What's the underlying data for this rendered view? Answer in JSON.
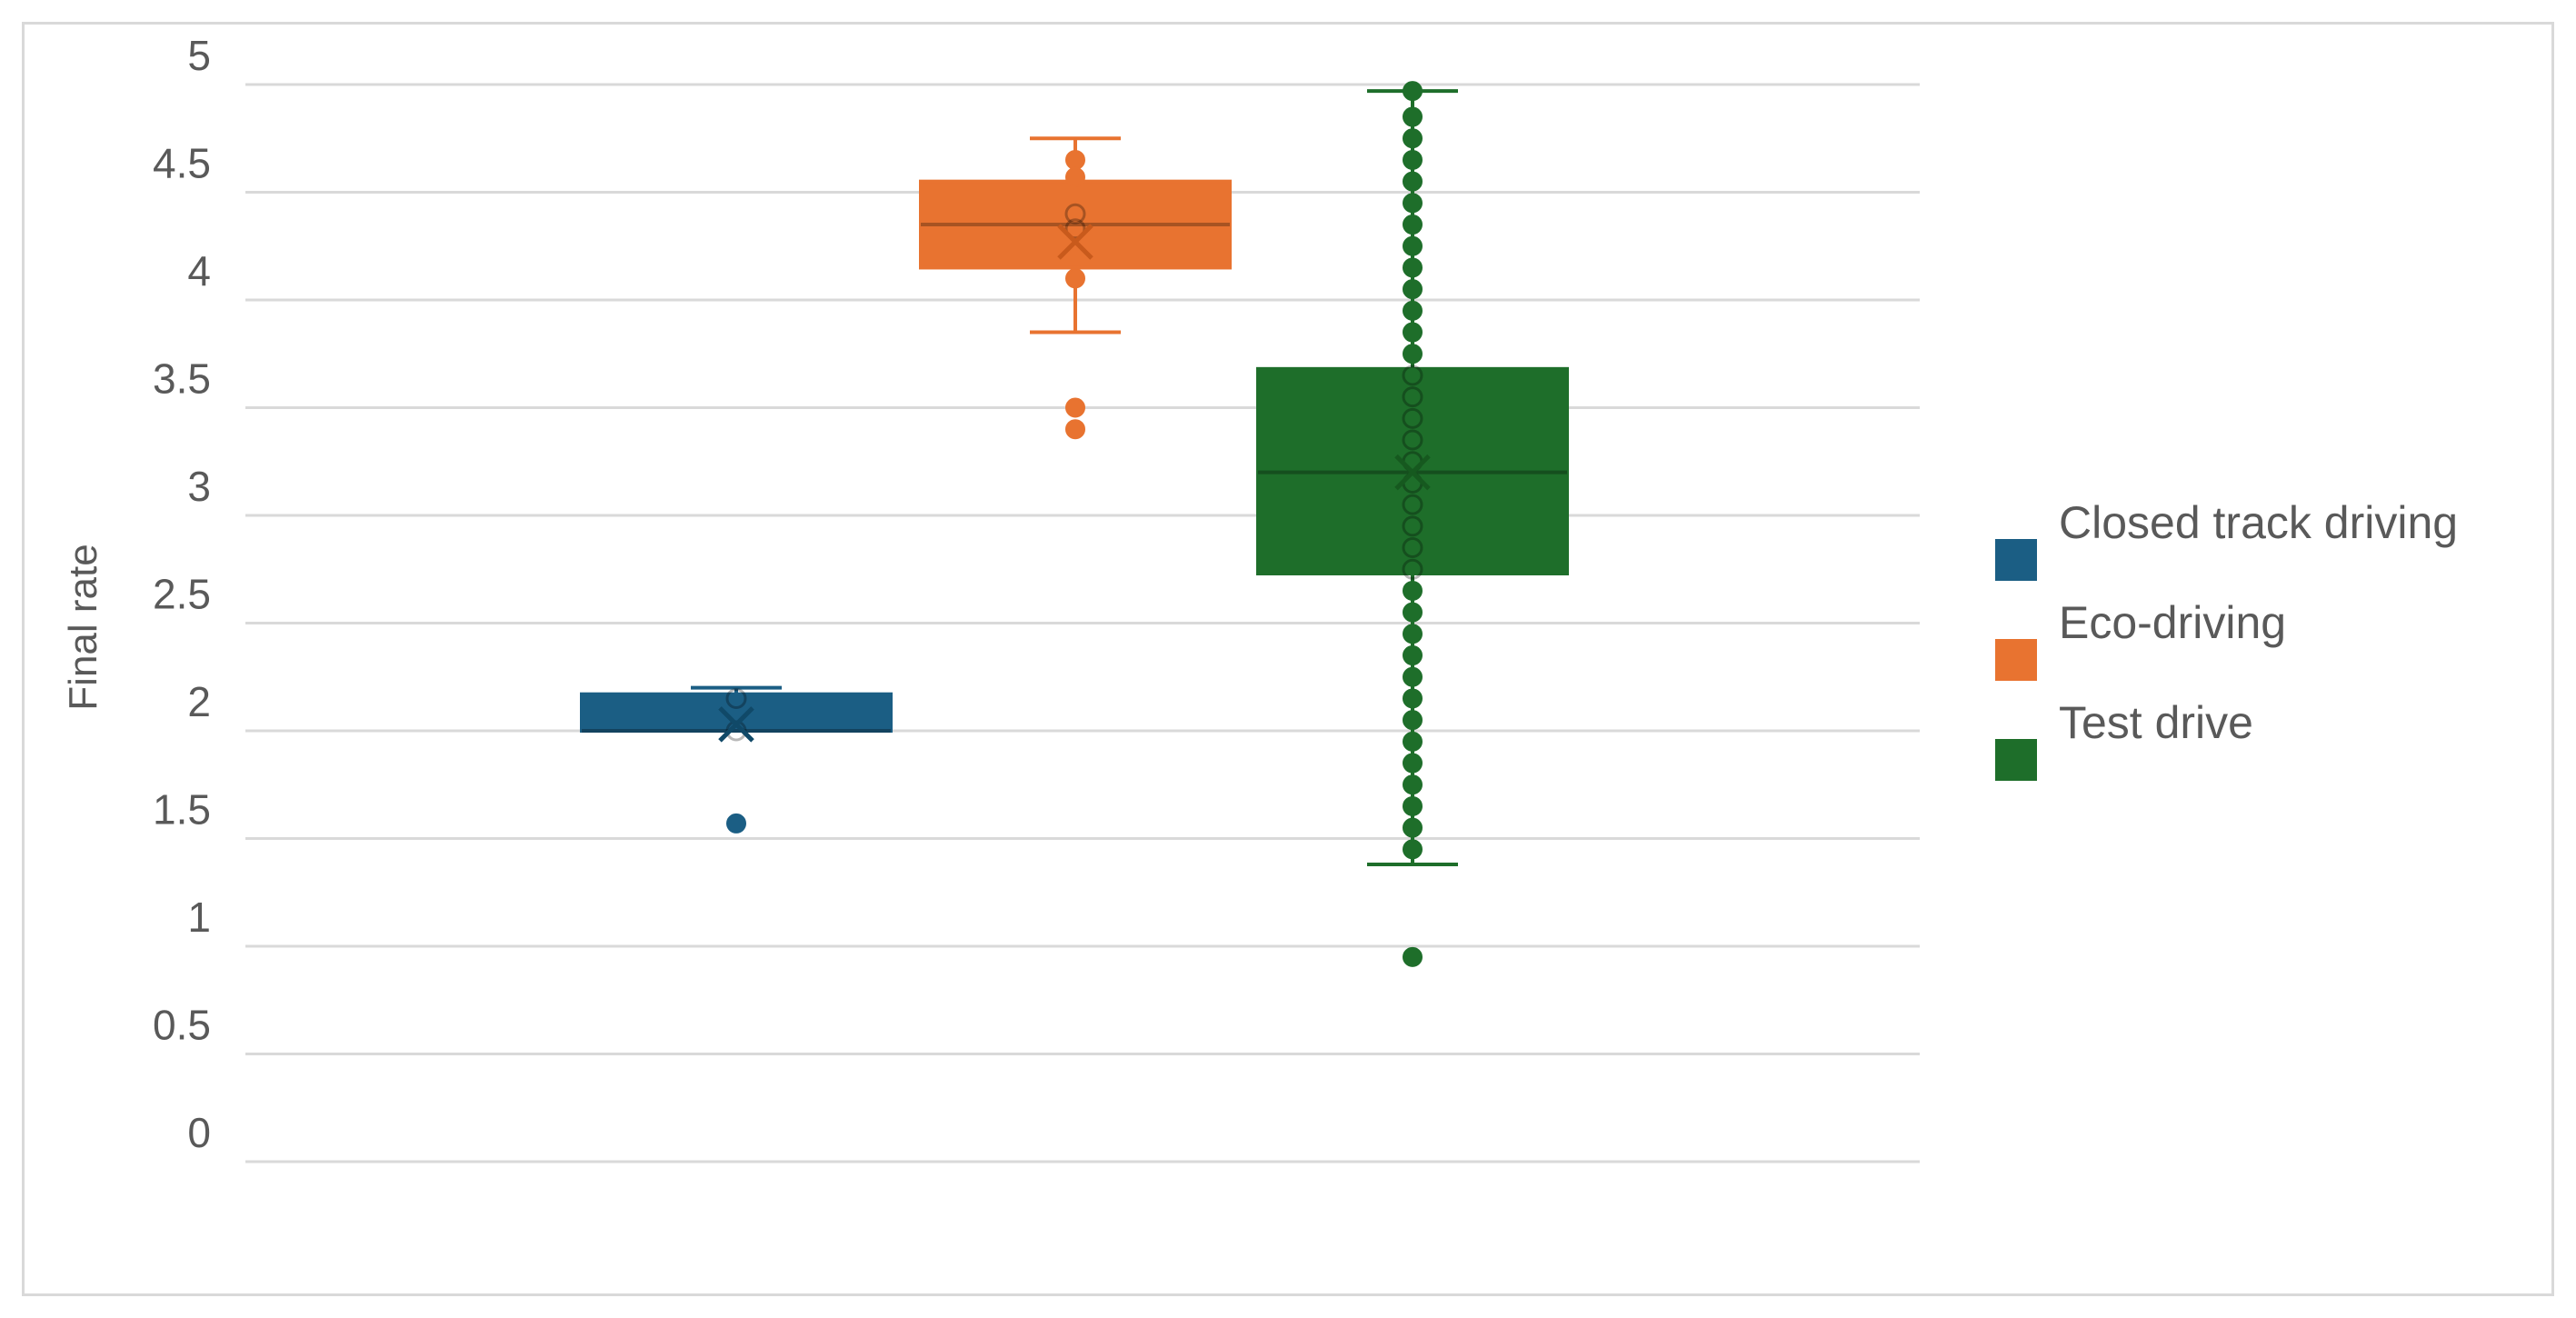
{
  "chart_data": {
    "type": "box",
    "title": "",
    "xlabel": "",
    "ylabel": "Final rate",
    "ylim": [
      0,
      5
    ],
    "y_ticks": [
      0,
      0.5,
      1,
      1.5,
      2,
      2.5,
      3,
      3.5,
      4,
      4.5,
      5
    ],
    "y_tick_labels": [
      "0",
      "0.5",
      "1",
      "1.5",
      "2",
      "2.5",
      "3",
      "3.5",
      "4",
      "4.5",
      "5"
    ],
    "grid": true,
    "legend_position": "right",
    "series": [
      {
        "name": "Closed track driving",
        "color": "#1b5e84",
        "whisker_low": 2.0,
        "q1": 2.0,
        "median": 2.0,
        "q3": 2.17,
        "whisker_high": 2.2,
        "mean": 2.03,
        "points": [
          2.15,
          2.0
        ],
        "outliers": [
          1.57
        ]
      },
      {
        "name": "Eco-driving",
        "color": "#e87330",
        "whisker_low": 3.85,
        "q1": 4.15,
        "median": 4.35,
        "q3": 4.55,
        "whisker_high": 4.75,
        "mean": 4.27,
        "points": [
          4.65,
          4.57,
          4.4,
          4.33,
          4.1
        ],
        "outliers": [
          3.5,
          3.4
        ]
      },
      {
        "name": "Test drive",
        "color": "#1e6e2a",
        "whisker_low": 1.38,
        "q1": 2.73,
        "median": 3.2,
        "q3": 3.68,
        "whisker_high": 4.97,
        "mean": 3.2,
        "points": [
          1.45,
          1.55,
          1.65,
          1.75,
          1.85,
          1.95,
          2.05,
          2.15,
          2.25,
          2.35,
          2.45,
          2.55,
          2.65,
          2.75,
          2.85,
          2.95,
          3.05,
          3.15,
          3.25,
          3.35,
          3.45,
          3.55,
          3.65,
          3.75,
          3.85,
          3.95,
          4.05,
          4.15,
          4.25,
          4.35,
          4.45,
          4.55,
          4.65,
          4.75,
          4.85,
          4.97
        ],
        "outliers": [
          0.95
        ]
      }
    ]
  }
}
